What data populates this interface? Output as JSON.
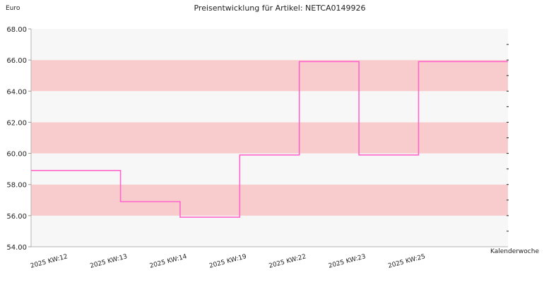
{
  "chart_data": {
    "type": "line",
    "step": "post",
    "title": "Preisentwicklung für Artikel: NETCA0149926",
    "ylabel": "Euro",
    "xlabel": "Kalenderwoche",
    "ylim": [
      54,
      68
    ],
    "yticks": [
      "54.00",
      "56.00",
      "58.00",
      "60.00",
      "62.00",
      "64.00",
      "66.00",
      "68.00"
    ],
    "categories": [
      "2025 KW:12",
      "2025 KW:13",
      "2025 KW:14",
      "2025 KW:19",
      "2025 KW:22",
      "2025 KW:23",
      "2025 KW:25"
    ],
    "series": [
      {
        "values": [
          58.9,
          56.9,
          55.9,
          59.9,
          65.9,
          59.9,
          65.9
        ]
      }
    ],
    "line_color": "#ff66cc",
    "band_colors": [
      "#f7f7f7",
      "#f8cccc"
    ],
    "grid": false,
    "legend": "none"
  }
}
